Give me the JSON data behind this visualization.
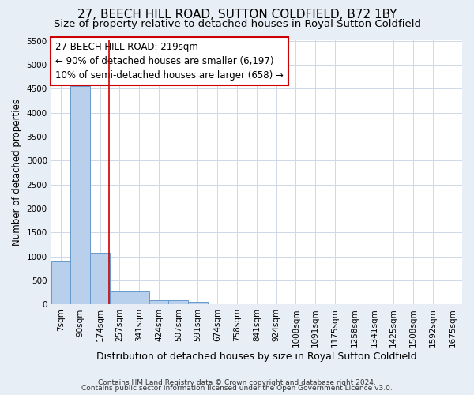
{
  "title": "27, BEECH HILL ROAD, SUTTON COLDFIELD, B72 1BY",
  "subtitle": "Size of property relative to detached houses in Royal Sutton Coldfield",
  "xlabel": "Distribution of detached houses by size in Royal Sutton Coldfield",
  "ylabel": "Number of detached properties",
  "footnote1": "Contains HM Land Registry data © Crown copyright and database right 2024.",
  "footnote2": "Contains public sector information licensed under the Open Government Licence v3.0.",
  "bar_labels": [
    "7sqm",
    "90sqm",
    "174sqm",
    "257sqm",
    "341sqm",
    "424sqm",
    "507sqm",
    "591sqm",
    "674sqm",
    "758sqm",
    "841sqm",
    "924sqm",
    "1008sqm",
    "1091sqm",
    "1175sqm",
    "1258sqm",
    "1341sqm",
    "1425sqm",
    "1508sqm",
    "1592sqm",
    "1675sqm"
  ],
  "bar_values": [
    900,
    4560,
    1070,
    290,
    290,
    90,
    90,
    60,
    0,
    0,
    0,
    0,
    0,
    0,
    0,
    0,
    0,
    0,
    0,
    0,
    0
  ],
  "bar_color": "#b8d0eb",
  "bar_edge_color": "#6699cc",
  "annotation_line1": "27 BEECH HILL ROAD: 219sqm",
  "annotation_line2": "← 90% of detached houses are smaller (6,197)",
  "annotation_line3": "10% of semi-detached houses are larger (658) →",
  "annotation_box_color": "#ffffff",
  "annotation_box_edge_color": "#cc0000",
  "vline_color": "#cc0000",
  "vline_x": 2.45,
  "ylim": [
    0,
    5500
  ],
  "yticks": [
    0,
    500,
    1000,
    1500,
    2000,
    2500,
    3000,
    3500,
    4000,
    4500,
    5000,
    5500
  ],
  "plot_bg_color": "#ffffff",
  "figure_bg_color": "#e8eef5",
  "grid_color": "#d0d8e8",
  "title_fontsize": 11,
  "subtitle_fontsize": 9.5,
  "xlabel_fontsize": 9,
  "ylabel_fontsize": 8.5,
  "annot_fontsize": 8.5,
  "tick_fontsize": 7.5,
  "footnote_fontsize": 6.5
}
